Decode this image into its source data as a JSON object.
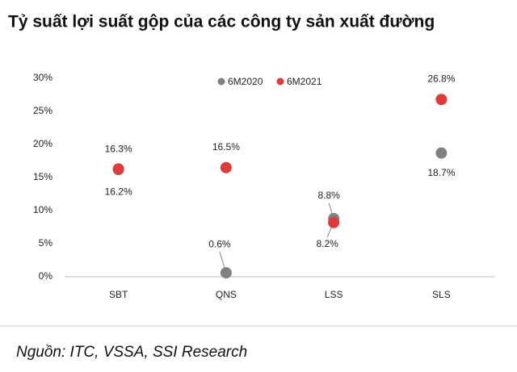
{
  "chart_data": {
    "type": "dot",
    "title": "Tỷ suất lợi suất gộp của các công ty sản xuất đường",
    "source": "Nguồn: ITC, VSSA, SSI Research",
    "categories": [
      "SBT",
      "QNS",
      "LSS",
      "SLS"
    ],
    "series": [
      {
        "name": "6M2020",
        "color": "#808080",
        "values": [
          16.2,
          0.6,
          8.8,
          18.7
        ],
        "value_labels": [
          "16.2%",
          "0.6%",
          "8.8%",
          "18.7%"
        ]
      },
      {
        "name": "6M2021",
        "color": "#e03a3a",
        "values": [
          16.3,
          16.5,
          8.2,
          26.8
        ],
        "value_labels": [
          "16.3%",
          "16.5%",
          "8.2%",
          "26.8%"
        ]
      }
    ],
    "ylim": [
      0,
      30
    ],
    "yticks": [
      {
        "value": 0,
        "label": "0%"
      },
      {
        "value": 5,
        "label": "5%"
      },
      {
        "value": 10,
        "label": "10%"
      },
      {
        "value": 15,
        "label": "15%"
      },
      {
        "value": 20,
        "label": "20%"
      },
      {
        "value": 25,
        "label": "25%"
      },
      {
        "value": 30,
        "label": "30%"
      }
    ]
  }
}
